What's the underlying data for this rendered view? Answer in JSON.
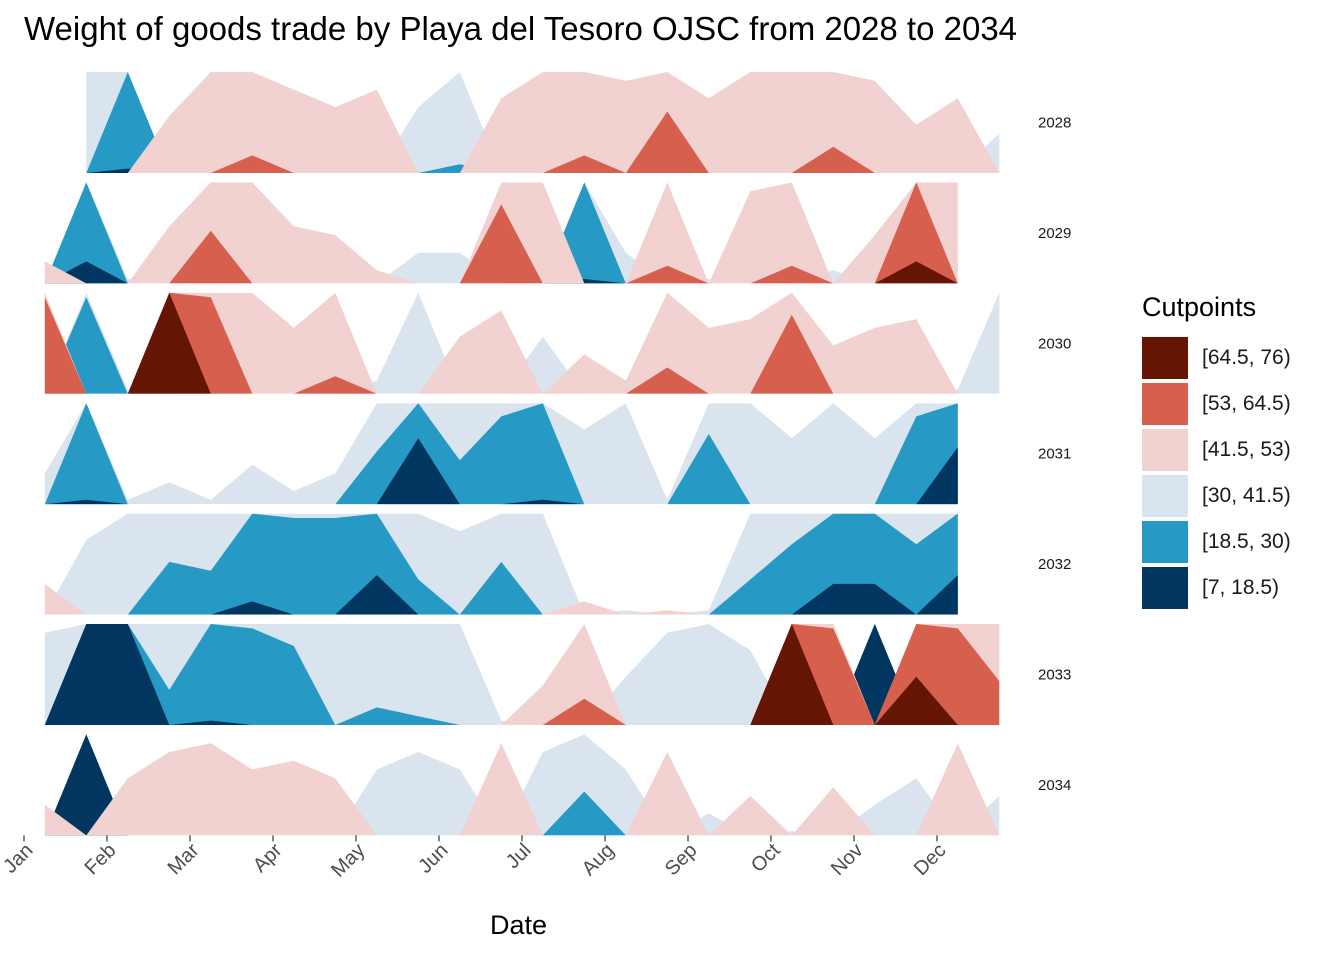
{
  "title": "Weight of goods trade by Playa del Tesoro OJSC from 2028 to 2034",
  "xlabel": "Date",
  "legend_title": "Cutpoints",
  "months": [
    "Jan",
    "Feb",
    "Mar",
    "Apr",
    "May",
    "Jun",
    "Jul",
    "Aug",
    "Sep",
    "Oct",
    "Nov",
    "Dec"
  ],
  "bands": [
    {
      "label": "[64.5, 76)",
      "color": "#641503"
    },
    {
      "label": "[53, 64.5)",
      "color": "#d6604d"
    },
    {
      "label": "[41.5, 53)",
      "color": "#f1d2d0"
    },
    {
      "label": "[30, 41.5)",
      "color": "#d9e4ee"
    },
    {
      "label": "[18.5, 30)",
      "color": "#2699c4"
    },
    {
      "label": "[7, 18.5)",
      "color": "#003660"
    }
  ],
  "chart_data": {
    "type": "area",
    "subtype": "horizon",
    "title": "Weight of goods trade by Playa del Tesoro OJSC from 2028 to 2034",
    "xlabel": "Date",
    "ylabel": "",
    "origin": 41.5,
    "band_width": 11.5,
    "legend_position": "right",
    "grid": false,
    "x": [
      "Jan",
      "Jan",
      "Feb",
      "Feb",
      "Mar",
      "Mar",
      "Apr",
      "Apr",
      "May",
      "May",
      "Jun",
      "Jun",
      "Jul",
      "Jul",
      "Aug",
      "Aug",
      "Sep",
      "Sep",
      "Oct",
      "Oct",
      "Nov",
      "Nov",
      "Dec",
      "Dec"
    ],
    "series": [
      {
        "name": "2028",
        "values": [
          null,
          30,
          18,
          48,
          53,
          55,
          51,
          49,
          51,
          34,
          29,
          50,
          53,
          55,
          52,
          60,
          50,
          53,
          53,
          56,
          52,
          47,
          50,
          37
        ]
      },
      {
        "name": "2029",
        "values": [
          44,
          16,
          41,
          48,
          59,
          53,
          48,
          47,
          43,
          38,
          38,
          62,
          53,
          18,
          38,
          55,
          41,
          52,
          55,
          40,
          47,
          67,
          53,
          null
        ]
      },
      {
        "name": "2030",
        "values": [
          64,
          19,
          41,
          76,
          64,
          53,
          49,
          55,
          40,
          30,
          48,
          51,
          35,
          46,
          43,
          56,
          49,
          50,
          62,
          47,
          49,
          50,
          41,
          30
        ]
      },
      {
        "name": "2031",
        "values": [
          38,
          18,
          41,
          39,
          41,
          37,
          40,
          38,
          24,
          11,
          25,
          20,
          18,
          33,
          30,
          41,
          22,
          30,
          34,
          30,
          34,
          20,
          12,
          null
        ]
      },
      {
        "name": "2032",
        "values": [
          45,
          33,
          30,
          24,
          25,
          17,
          19,
          19,
          14,
          26,
          32,
          24,
          30,
          43,
          41,
          42,
          41,
          26,
          22,
          15,
          15,
          22,
          14,
          null
        ]
      },
      {
        "name": "2033",
        "values": [
          31,
          7,
          7,
          26,
          18,
          19,
          21,
          30,
          28,
          29,
          30,
          41,
          46,
          56,
          36,
          31,
          30,
          33,
          76,
          64,
          7,
          70,
          64,
          58
        ]
      },
      {
        "name": "2034",
        "values": [
          45,
          7,
          48,
          51,
          52,
          49,
          50,
          48,
          34,
          32,
          34,
          52,
          32,
          25,
          34,
          51,
          39,
          46,
          41,
          47,
          38,
          35,
          52,
          37
        ]
      }
    ]
  }
}
